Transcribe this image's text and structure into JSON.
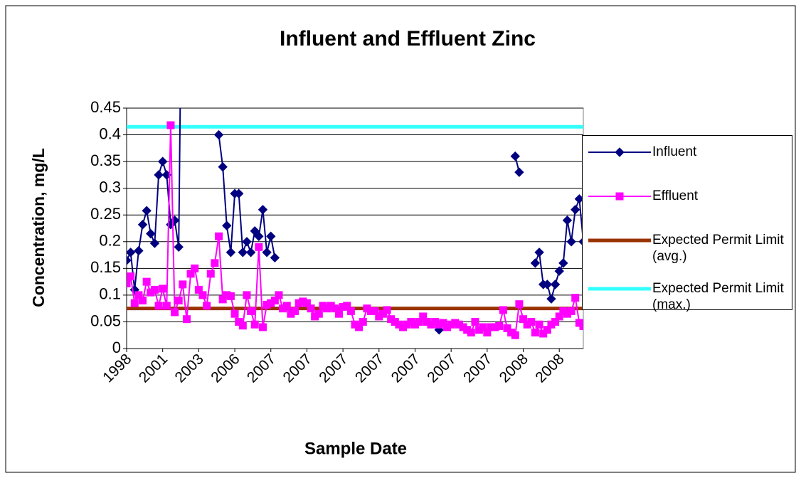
{
  "chart_data": {
    "type": "line",
    "title": "Influent and Effluent Zinc",
    "x_label": "Sample Date",
    "y_label": "Concentration, mg/L",
    "categories": [
      "1998",
      null,
      null,
      null,
      null,
      null,
      null,
      null,
      null,
      "2001",
      null,
      null,
      null,
      null,
      null,
      null,
      null,
      null,
      "2003",
      null,
      null,
      null,
      null,
      null,
      null,
      null,
      null,
      "2006",
      null,
      null,
      null,
      null,
      null,
      null,
      null,
      null,
      "2007",
      null,
      null,
      null,
      null,
      null,
      null,
      null,
      null,
      "2007",
      null,
      null,
      null,
      null,
      null,
      null,
      null,
      null,
      "2007",
      null,
      null,
      null,
      null,
      null,
      null,
      null,
      null,
      "2007",
      null,
      null,
      null,
      null,
      null,
      null,
      null,
      null,
      "2007",
      null,
      null,
      null,
      null,
      null,
      null,
      null,
      null,
      "2007",
      null,
      null,
      null,
      null,
      null,
      null,
      null,
      null,
      "2007",
      null,
      null,
      null,
      null,
      null,
      null,
      null,
      null,
      "2008",
      null,
      null,
      null,
      null,
      null,
      null,
      null,
      null,
      "2008",
      null,
      null,
      null,
      null,
      null,
      null
    ],
    "series": [
      {
        "name": "Influent",
        "color": "#000080",
        "marker": "diamond",
        "values": [
          0.165,
          0.18,
          0.11,
          0.183,
          0.232,
          0.258,
          0.215,
          0.197,
          0.325,
          0.35,
          0.325,
          0.232,
          0.24,
          0.19,
          0.9,
          null,
          null,
          null,
          null,
          null,
          null,
          null,
          null,
          0.4,
          0.34,
          0.23,
          0.18,
          0.29,
          0.29,
          0.18,
          0.2,
          0.18,
          0.22,
          0.21,
          0.26,
          0.18,
          0.21,
          0.17,
          null,
          null,
          null,
          null,
          null,
          null,
          null,
          null,
          null,
          null,
          null,
          null,
          null,
          null,
          null,
          null,
          null,
          null,
          null,
          null,
          null,
          null,
          null,
          null,
          null,
          null,
          null,
          null,
          null,
          null,
          null,
          null,
          null,
          null,
          null,
          null,
          null,
          null,
          null,
          null,
          0.035,
          null,
          null,
          null,
          null,
          null,
          null,
          null,
          null,
          null,
          null,
          null,
          null,
          null,
          null,
          null,
          null,
          null,
          null,
          0.36,
          0.33,
          null,
          null,
          null,
          0.16,
          0.18,
          0.12,
          0.12,
          0.093,
          0.12,
          0.145,
          0.16,
          0.24,
          0.2,
          0.26,
          0.28,
          0.2
        ]
      },
      {
        "name": "Effluent",
        "color": "#ff00ff",
        "marker": "square",
        "values": [
          0.122,
          0.135,
          0.085,
          0.1,
          0.09,
          0.125,
          0.105,
          0.11,
          0.08,
          0.112,
          0.08,
          0.418,
          0.068,
          0.09,
          0.12,
          0.055,
          0.14,
          0.15,
          0.11,
          0.1,
          0.08,
          0.14,
          0.16,
          0.21,
          0.092,
          0.1,
          0.098,
          0.065,
          0.05,
          0.043,
          0.1,
          0.07,
          0.045,
          0.19,
          0.04,
          0.082,
          0.085,
          0.09,
          0.1,
          0.075,
          0.08,
          0.065,
          0.07,
          0.085,
          0.088,
          0.085,
          0.075,
          0.06,
          0.065,
          0.08,
          0.075,
          0.08,
          0.075,
          0.065,
          0.078,
          0.08,
          0.07,
          0.045,
          0.04,
          0.05,
          0.075,
          0.07,
          0.07,
          0.06,
          0.065,
          0.072,
          0.055,
          0.05,
          0.045,
          0.04,
          0.045,
          0.05,
          0.045,
          0.05,
          0.06,
          0.05,
          0.045,
          0.05,
          0.045,
          0.048,
          0.04,
          0.045,
          0.048,
          0.045,
          0.04,
          0.035,
          0.03,
          0.05,
          0.035,
          0.04,
          0.03,
          0.04,
          0.04,
          0.042,
          0.072,
          0.038,
          0.03,
          0.025,
          0.083,
          0.055,
          0.045,
          0.05,
          0.03,
          0.045,
          0.028,
          0.035,
          0.045,
          0.05,
          0.06,
          0.07,
          0.065,
          0.07,
          0.095,
          0.048,
          0.042
        ]
      },
      {
        "name": "Expected Permit Limit (avg.)",
        "color": "#993300",
        "value": 0.075
      },
      {
        "name": "Expected Permit Limit (max.)",
        "color": "#33ffff",
        "value": 0.415
      }
    ],
    "ylim": [
      0,
      0.45
    ],
    "yticks": [
      0,
      0.05,
      0.1,
      0.15,
      0.2,
      0.25,
      0.3,
      0.35,
      0.4,
      0.45
    ],
    "grid": true,
    "legend": "right"
  }
}
